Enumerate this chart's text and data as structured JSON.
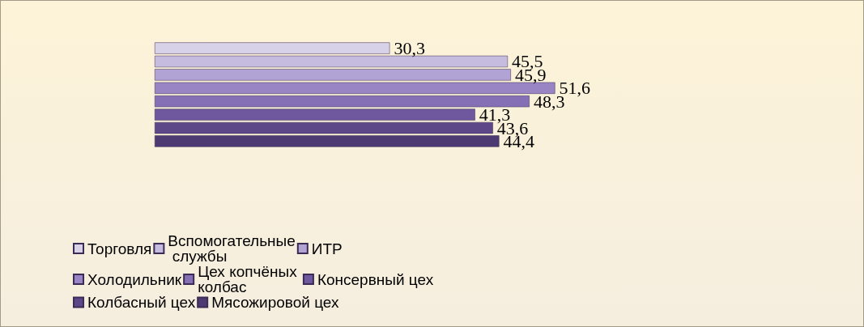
{
  "chart_data": {
    "type": "bar",
    "orientation": "horizontal",
    "categories": [
      null
    ],
    "tick_labels": false,
    "legend": "bottom",
    "series": [
      {
        "name": "Торговля",
        "color": "#d8d2e8",
        "values": [
          30.3
        ],
        "value_labels": [
          "30,3"
        ]
      },
      {
        "name": "Вспомогательные службы",
        "color": "#c6bcdf",
        "values": [
          45.5
        ],
        "value_labels": [
          "45,5"
        ]
      },
      {
        "name": "ИТР",
        "color": "#b1a3d3",
        "values": [
          45.9
        ],
        "value_labels": [
          "45,9"
        ]
      },
      {
        "name": "Холодильник",
        "color": "#9985c4",
        "values": [
          51.6
        ],
        "value_labels": [
          "51,6"
        ]
      },
      {
        "name": "Цех копчёных колбас",
        "color": "#8670b5",
        "values": [
          48.3
        ],
        "value_labels": [
          "48,3"
        ]
      },
      {
        "name": "Консервный цех",
        "color": "#6f589d",
        "values": [
          41.3
        ],
        "value_labels": [
          "41,3"
        ]
      },
      {
        "name": "Колбасный цех",
        "color": "#5d4789",
        "values": [
          43.6
        ],
        "value_labels": [
          "43,6"
        ]
      },
      {
        "name": "Мясожировой цех",
        "color": "#4d3a73",
        "values": [
          44.4
        ],
        "value_labels": [
          "44,4"
        ]
      }
    ]
  }
}
